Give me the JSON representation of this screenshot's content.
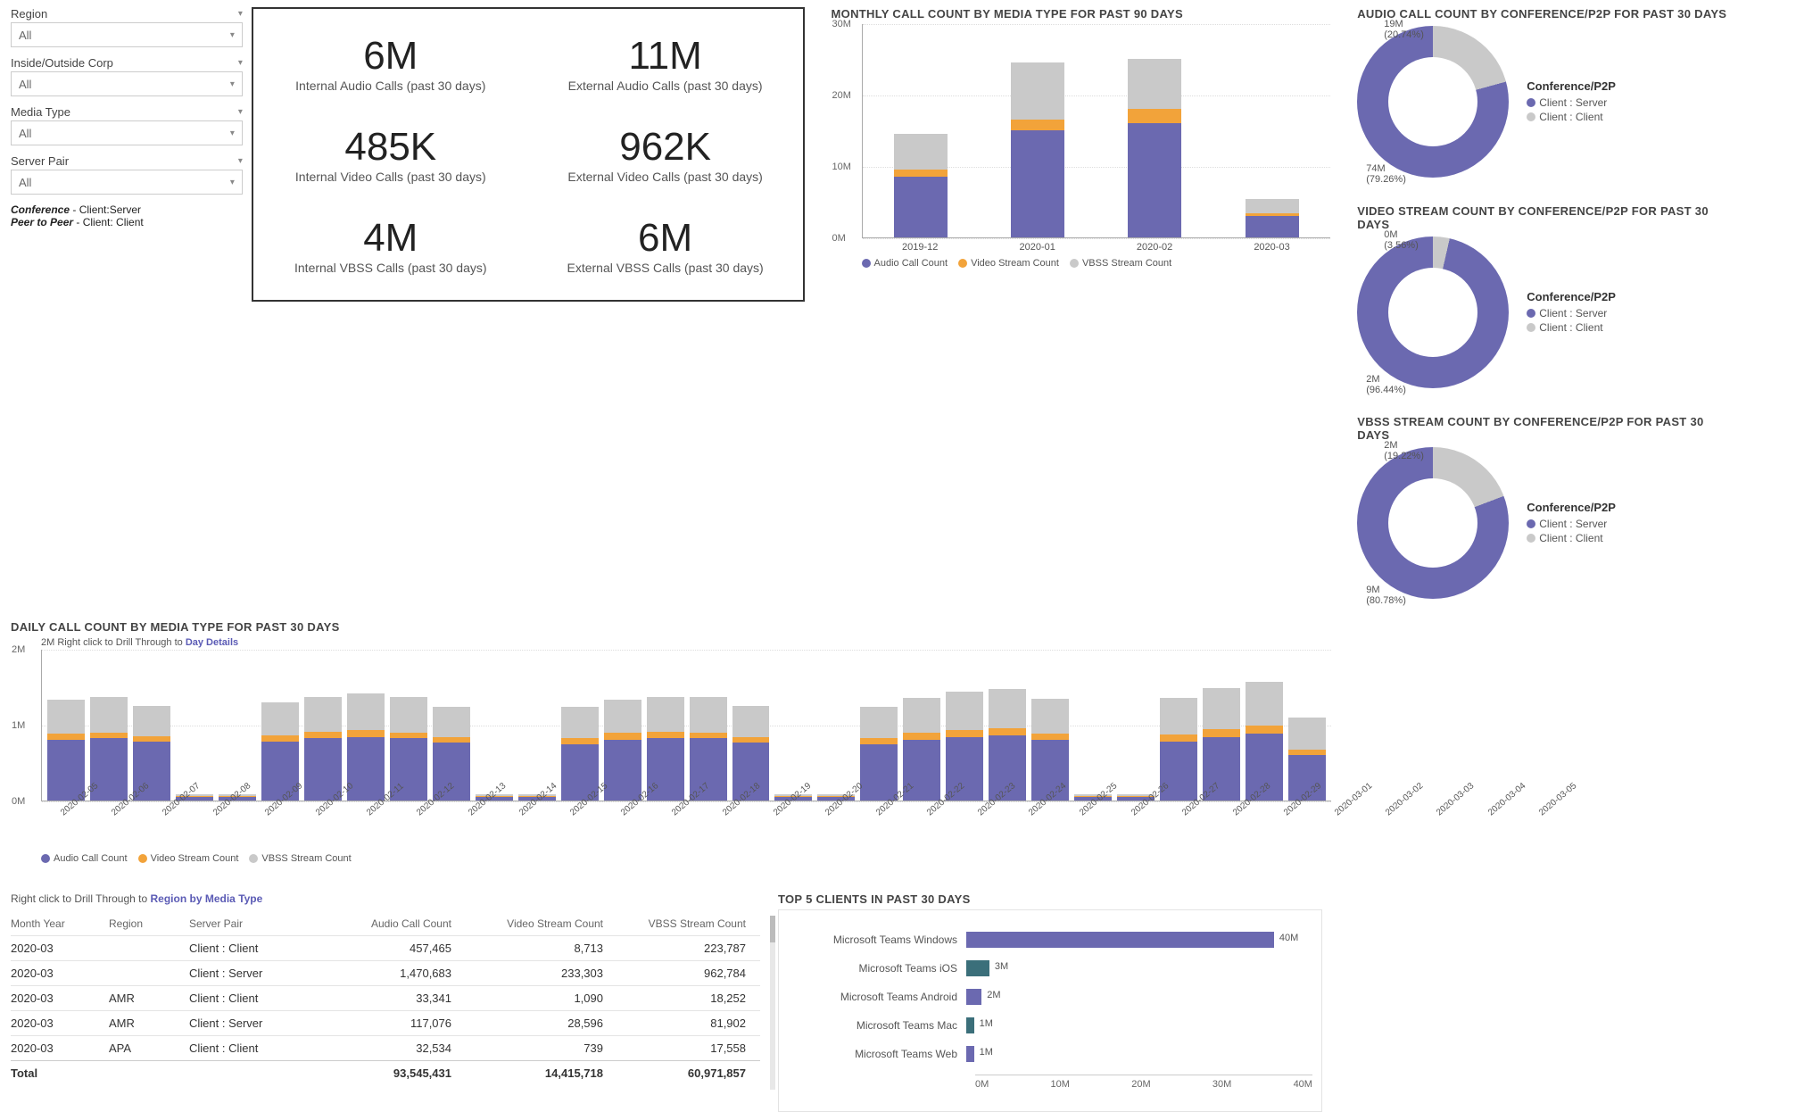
{
  "colors": {
    "audio": "#6b69b0",
    "video": "#f2a33a",
    "vbss": "#c9c9c9",
    "client_server": "#6b69b0",
    "client_client": "#c9c9c9",
    "hbar": "#6b69b0",
    "hbar_alt": "#3b6f7a",
    "grid": "#e0e0e0",
    "text": "#555555"
  },
  "slicers": [
    {
      "label": "Region",
      "value": "All"
    },
    {
      "label": "Inside/Outside Corp",
      "value": "All"
    },
    {
      "label": "Media Type",
      "value": "All"
    },
    {
      "label": "Server Pair",
      "value": "All"
    }
  ],
  "slicer_notes": {
    "line1_b": "Conference",
    "line1_r": " - Client:Server",
    "line2_b": "Peer to Peer",
    "line2_r": " - Client: Client"
  },
  "kpi": [
    {
      "value": "6M",
      "label": "Internal Audio Calls (past 30 days)"
    },
    {
      "value": "11M",
      "label": "External Audio Calls (past 30 days)"
    },
    {
      "value": "485K",
      "label": "Internal Video Calls (past 30 days)"
    },
    {
      "value": "962K",
      "label": "External Video Calls (past 30 days)"
    },
    {
      "value": "4M",
      "label": "Internal VBSS Calls (past 30 days)"
    },
    {
      "value": "6M",
      "label": "External VBSS Calls (past 30 days)"
    }
  ],
  "monthly": {
    "title": "MONTHLY CALL COUNT BY MEDIA TYPE FOR PAST 90 DAYS",
    "type": "stacked-bar",
    "ylim": [
      0,
      30
    ],
    "ytick_step": 10,
    "y_unit": "M",
    "categories": [
      "2019-12",
      "2020-01",
      "2020-02",
      "2020-03"
    ],
    "series": [
      {
        "name": "Audio Call Count",
        "color_key": "audio",
        "values": [
          8.5,
          15,
          16,
          3
        ]
      },
      {
        "name": "Video Stream Count",
        "color_key": "video",
        "values": [
          1,
          1.5,
          2,
          0.4
        ]
      },
      {
        "name": "VBSS Stream Count",
        "color_key": "vbss",
        "values": [
          5,
          8,
          7,
          2
        ]
      }
    ]
  },
  "donuts": [
    {
      "title": "AUDIO CALL COUNT BY CONFERENCE/P2P FOR PAST 30 DAYS",
      "legend_title": "Conference/P2P",
      "slices": [
        {
          "name": "Client : Server",
          "color_key": "client_server",
          "value_label": "74M",
          "pct_label": "(79.26%)",
          "pct": 79.26
        },
        {
          "name": "Client : Client",
          "color_key": "client_client",
          "value_label": "19M",
          "pct_label": "(20.74%)",
          "pct": 20.74
        }
      ]
    },
    {
      "title": "VIDEO STREAM COUNT BY CONFERENCE/P2P FOR PAST 30 DAYS",
      "legend_title": "Conference/P2P",
      "slices": [
        {
          "name": "Client : Server",
          "color_key": "client_server",
          "value_label": "2M",
          "pct_label": "(96.44%)",
          "pct": 96.44
        },
        {
          "name": "Client : Client",
          "color_key": "client_client",
          "value_label": "0M",
          "pct_label": "(3.56%)",
          "pct": 3.56
        }
      ]
    },
    {
      "title": "VBSS STREAM COUNT BY CONFERENCE/P2P FOR PAST 30 DAYS",
      "legend_title": "Conference/P2P",
      "slices": [
        {
          "name": "Client : Server",
          "color_key": "client_server",
          "value_label": "9M",
          "pct_label": "(80.78%)",
          "pct": 80.78
        },
        {
          "name": "Client : Client",
          "color_key": "client_client",
          "value_label": "2M",
          "pct_label": "(19.22%)",
          "pct": 19.22
        }
      ]
    }
  ],
  "daily": {
    "title": "DAILY CALL COUNT BY MEDIA TYPE FOR PAST 30 DAYS",
    "hint_prefix": "2M    Right click to Drill Through to ",
    "hint_bold": "Day Details",
    "type": "stacked-bar",
    "ylim": [
      0,
      2
    ],
    "yticks": [
      "0M",
      "1M",
      "2M"
    ],
    "legend": [
      "Audio Call Count",
      "Video Stream Count",
      "VBSS Stream Count"
    ],
    "dates": [
      "2020-02-05",
      "2020-02-06",
      "2020-02-07",
      "2020-02-08",
      "2020-02-09",
      "2020-02-10",
      "2020-02-11",
      "2020-02-12",
      "2020-02-13",
      "2020-02-14",
      "2020-02-15",
      "2020-02-16",
      "2020-02-17",
      "2020-02-18",
      "2020-02-19",
      "2020-02-20",
      "2020-02-21",
      "2020-02-22",
      "2020-02-23",
      "2020-02-24",
      "2020-02-25",
      "2020-02-26",
      "2020-02-27",
      "2020-02-28",
      "2020-02-29",
      "2020-03-01",
      "2020-03-02",
      "2020-03-03",
      "2020-03-04",
      "2020-03-05"
    ],
    "audio": [
      0.8,
      0.82,
      0.78,
      0.05,
      0.05,
      0.78,
      0.82,
      0.84,
      0.82,
      0.76,
      0.05,
      0.05,
      0.74,
      0.8,
      0.82,
      0.82,
      0.76,
      0.05,
      0.05,
      0.74,
      0.8,
      0.84,
      0.86,
      0.8,
      0.05,
      0.05,
      0.78,
      0.84,
      0.88,
      0.6
    ],
    "video": [
      0.08,
      0.08,
      0.07,
      0.01,
      0.01,
      0.08,
      0.09,
      0.09,
      0.08,
      0.07,
      0.01,
      0.01,
      0.08,
      0.09,
      0.09,
      0.08,
      0.07,
      0.01,
      0.01,
      0.08,
      0.09,
      0.09,
      0.09,
      0.08,
      0.01,
      0.01,
      0.09,
      0.1,
      0.11,
      0.07
    ],
    "vbss": [
      0.45,
      0.46,
      0.4,
      0.02,
      0.02,
      0.44,
      0.46,
      0.48,
      0.46,
      0.4,
      0.02,
      0.02,
      0.42,
      0.44,
      0.46,
      0.46,
      0.42,
      0.02,
      0.02,
      0.42,
      0.46,
      0.5,
      0.52,
      0.46,
      0.02,
      0.02,
      0.48,
      0.54,
      0.58,
      0.42
    ]
  },
  "table": {
    "drill_prefix": "Right click to Drill Through to ",
    "drill_bold": "Region by Media Type",
    "columns": [
      "Month Year",
      "Region",
      "Server Pair",
      "Audio Call Count",
      "Video Stream Count",
      "VBSS Stream Count"
    ],
    "rows": [
      [
        "2020-03",
        "",
        "Client : Client",
        "457,465",
        "8,713",
        "223,787"
      ],
      [
        "2020-03",
        "",
        "Client : Server",
        "1,470,683",
        "233,303",
        "962,784"
      ],
      [
        "2020-03",
        "AMR",
        "Client : Client",
        "33,341",
        "1,090",
        "18,252"
      ],
      [
        "2020-03",
        "AMR",
        "Client : Server",
        "117,076",
        "28,596",
        "81,902"
      ],
      [
        "2020-03",
        "APA",
        "Client : Client",
        "32,534",
        "739",
        "17,558"
      ]
    ],
    "total_label": "Total",
    "totals": [
      "93,545,431",
      "14,415,718",
      "60,971,857"
    ]
  },
  "clients": {
    "title": "TOP 5 CLIENTS IN PAST 30 DAYS",
    "x_ticks": [
      "0M",
      "10M",
      "20M",
      "30M",
      "40M"
    ],
    "max": 45,
    "rows": [
      {
        "label": "Microsoft Teams Windows",
        "value": 40,
        "value_label": "40M",
        "color_key": "hbar"
      },
      {
        "label": "Microsoft Teams iOS",
        "value": 3,
        "value_label": "3M",
        "color_key": "hbar_alt"
      },
      {
        "label": "Microsoft Teams Android",
        "value": 2,
        "value_label": "2M",
        "color_key": "hbar"
      },
      {
        "label": "Microsoft Teams Mac",
        "value": 1,
        "value_label": "1M",
        "color_key": "hbar_alt"
      },
      {
        "label": "Microsoft Teams Web",
        "value": 1,
        "value_label": "1M",
        "color_key": "hbar"
      }
    ]
  }
}
